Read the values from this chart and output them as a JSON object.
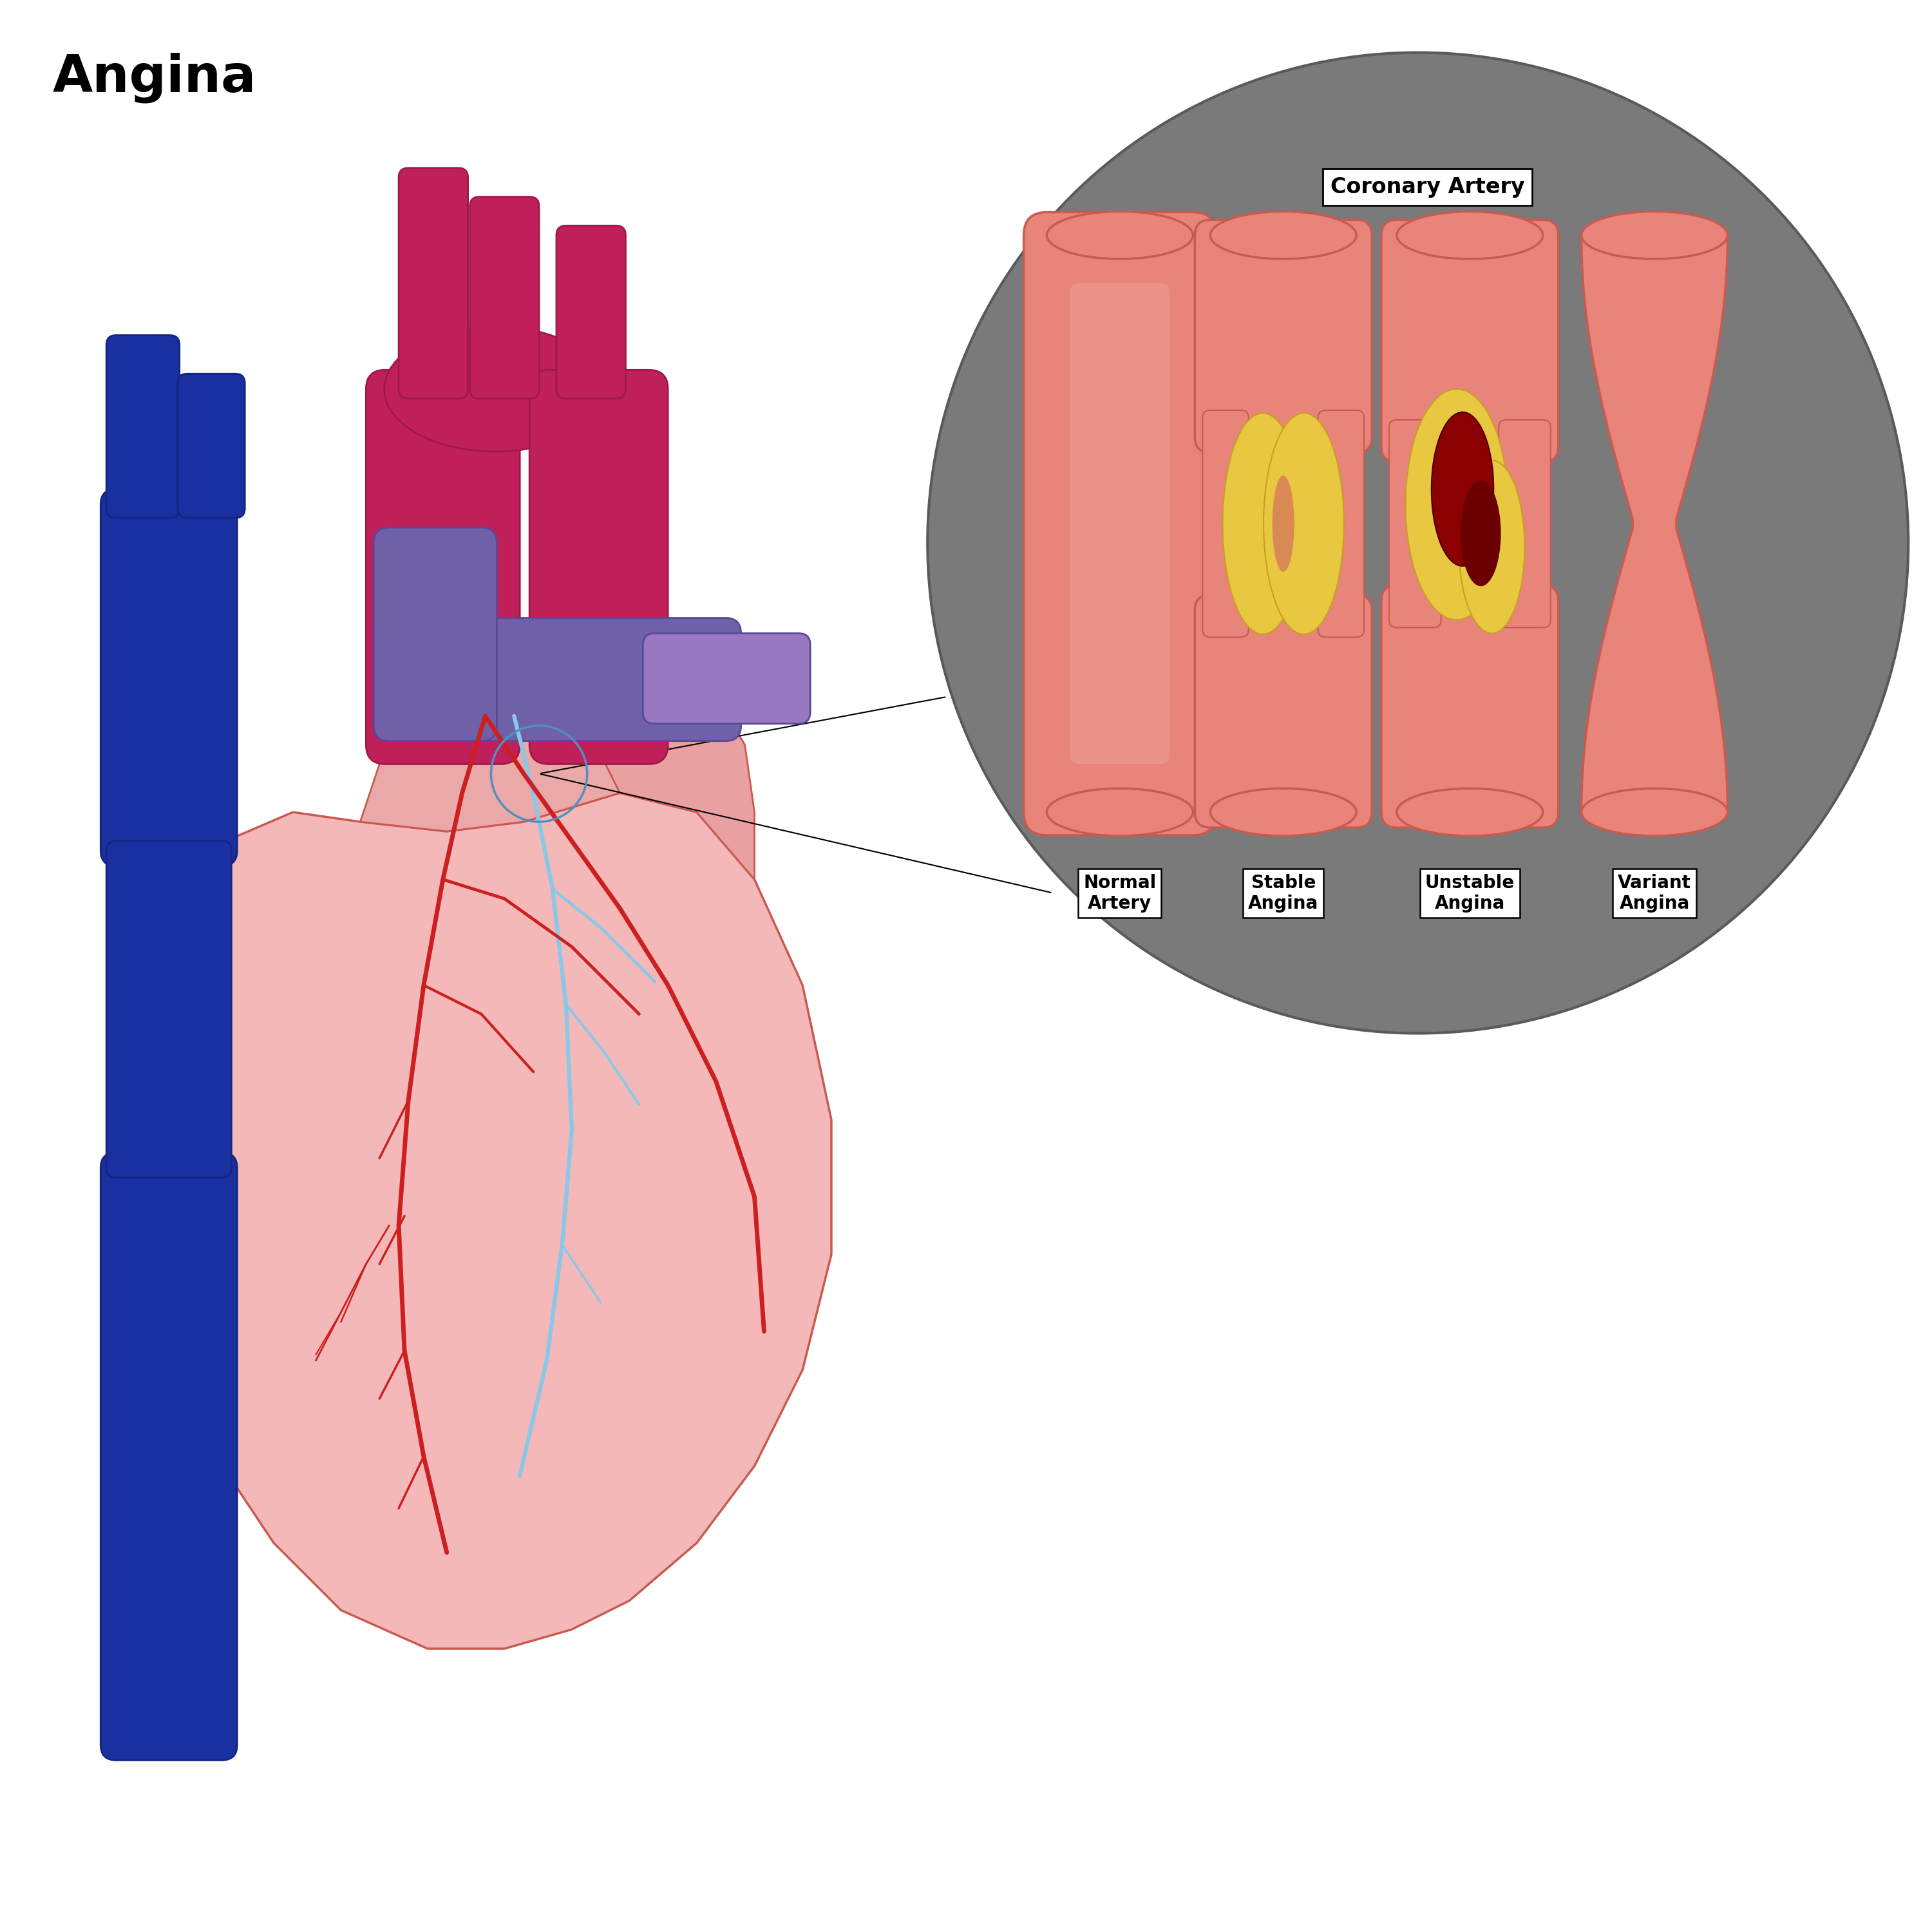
{
  "title": "Angina",
  "background_color": "#ffffff",
  "circle_bg": "#7a7a7a",
  "coronary_label": "Coronary Artery",
  "artery_color": "#E8847A",
  "artery_outer": "#D4706A",
  "artery_dark": "#C85A50",
  "plaque_yellow": "#E8C840",
  "plaque_dark": "#C8A020",
  "thrombus_red": "#8B0000",
  "heart_pink": "#F5B8B8",
  "heart_pink_main": "#F0A8A8",
  "heart_pink_dark": "#E89090",
  "heart_magenta": "#C0205A",
  "heart_magenta_dark": "#A01848",
  "heart_blue": "#1A2FA0",
  "heart_blue_dark": "#142580",
  "heart_purple": "#7060A8",
  "heart_purple_dark": "#5A4898",
  "vein_blue_light": "#88C8E8",
  "red_vessel": "#CC2020",
  "labels": [
    "Normal\nArtery",
    "Stable\nAngina",
    "Unstable\nAngina",
    "Variant\nAngina"
  ]
}
